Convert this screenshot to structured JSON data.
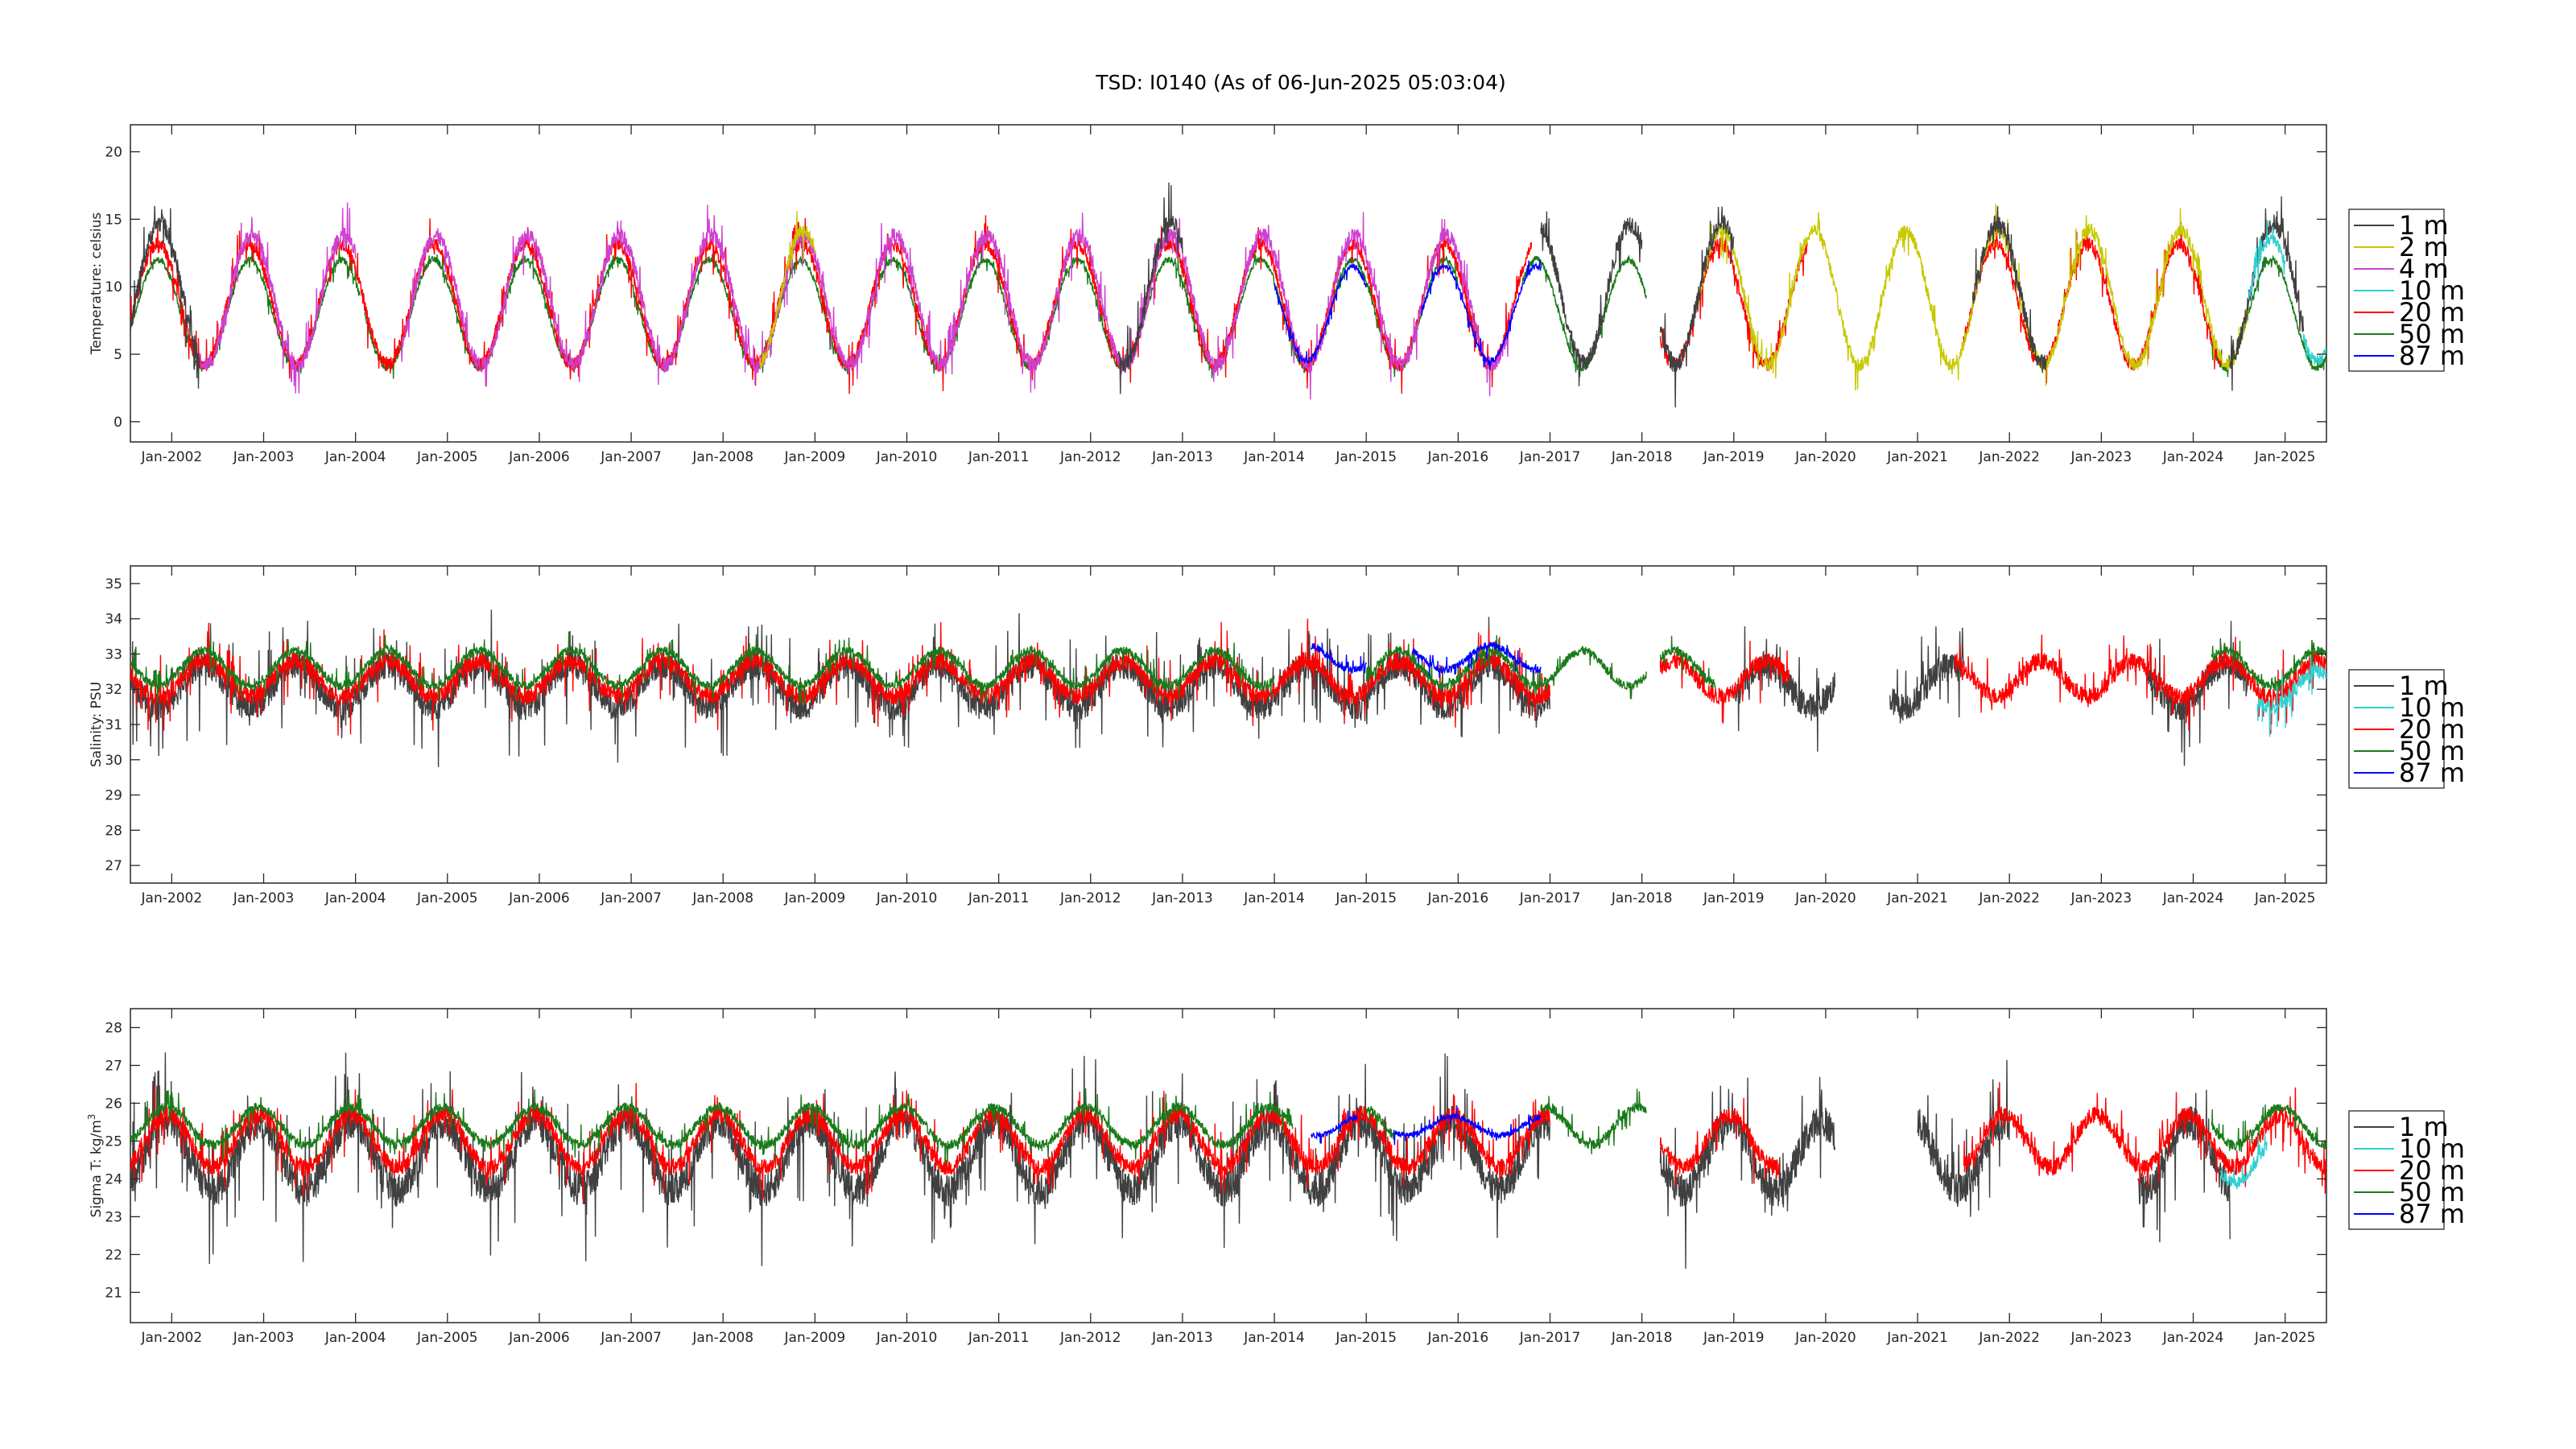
{
  "title": "TSD: I0140 (As of 06-Jun-2025 05:03:04)",
  "chart_data": [
    {
      "type": "line",
      "ylabel": "Temperature:  celsius",
      "xlim": [
        2001.55,
        2025.45
      ],
      "ylim": [
        -1.5,
        22
      ],
      "yticks": [
        0,
        5,
        10,
        15,
        20
      ],
      "xticks": [
        "Jan-2002",
        "Jan-2003",
        "Jan-2004",
        "Jan-2005",
        "Jan-2006",
        "Jan-2007",
        "Jan-2008",
        "Jan-2009",
        "Jan-2010",
        "Jan-2011",
        "Jan-2012",
        "Jan-2013",
        "Jan-2014",
        "Jan-2015",
        "Jan-2016",
        "Jan-2017",
        "Jan-2018",
        "Jan-2019",
        "Jan-2020",
        "Jan-2021",
        "Jan-2022",
        "Jan-2023",
        "Jan-2024",
        "Jan-2025"
      ],
      "grid": false,
      "legend_position": "right",
      "legend": [
        {
          "name": "1 m",
          "color": "#404040"
        },
        {
          "name": "2 m",
          "color": "#c8c800"
        },
        {
          "name": "4 m",
          "color": "#d040d0"
        },
        {
          "name": "10 m",
          "color": "#30d0d0"
        },
        {
          "name": "20 m",
          "color": "#ff0000"
        },
        {
          "name": "50 m",
          "color": "#1a7a1a"
        },
        {
          "name": "87 m",
          "color": "#0000ff"
        }
      ],
      "series": [
        {
          "name": "50 m",
          "color": "#1a7a1a",
          "mean": 8,
          "amp": 4,
          "phase": 0.6,
          "noise": 0.5,
          "segments": [
            [
              2001.55,
              2004.05
            ],
            [
              2004.1,
              2016.0
            ],
            [
              2016.7,
              2018.05
            ],
            [
              2024.2,
              2025.45
            ]
          ]
        },
        {
          "name": "20 m",
          "color": "#ff0000",
          "mean": 8.7,
          "amp": 4.5,
          "phase": 0.6,
          "noise": 1.0,
          "segments": [
            [
              2001.55,
              2016.8
            ],
            [
              2018.2,
              2019.8
            ],
            [
              2021.5,
              2024.3
            ]
          ]
        },
        {
          "name": "4 m",
          "color": "#d040d0",
          "mean": 9,
          "amp": 4.8,
          "phase": 0.62,
          "noise": 1.2,
          "segments": [
            [
              2002.3,
              2004.0
            ],
            [
              2004.5,
              2016.6
            ]
          ]
        },
        {
          "name": "2 m",
          "color": "#c8c800",
          "mean": 9.2,
          "amp": 5,
          "phase": 0.62,
          "noise": 1.0,
          "segments": [
            [
              2008.4,
              2009.0
            ],
            [
              2018.6,
              2024.6
            ]
          ]
        },
        {
          "name": "1 m",
          "color": "#404040",
          "mean": 9.5,
          "amp": 5.2,
          "phase": 0.62,
          "noise": 1.4,
          "segments": [
            [
              2001.55,
              2002.3
            ],
            [
              2012.3,
              2013.0
            ],
            [
              2016.9,
              2018.0
            ],
            [
              2018.2,
              2019.0
            ],
            [
              2021.6,
              2022.4
            ],
            [
              2024.4,
              2025.2
            ]
          ]
        },
        {
          "name": "87 m",
          "color": "#0000ff",
          "mean": 8,
          "amp": 3.5,
          "phase": 0.6,
          "noise": 0.4,
          "segments": [
            [
              2014.0,
              2015.0
            ],
            [
              2015.6,
              2016.9
            ]
          ]
        },
        {
          "name": "10 m",
          "color": "#30d0d0",
          "mean": 9,
          "amp": 4.5,
          "phase": 0.6,
          "noise": 0.8,
          "segments": [
            [
              2024.6,
              2025.0
            ],
            [
              2025.2,
              2025.45
            ]
          ]
        }
      ]
    },
    {
      "type": "line",
      "ylabel": "Salinity:  PSU",
      "xlim": [
        2001.55,
        2025.45
      ],
      "ylim": [
        26.5,
        35.5
      ],
      "yticks": [
        27,
        28,
        29,
        30,
        31,
        32,
        33,
        34,
        35
      ],
      "xticks": [
        "Jan-2002",
        "Jan-2003",
        "Jan-2004",
        "Jan-2005",
        "Jan-2006",
        "Jan-2007",
        "Jan-2008",
        "Jan-2009",
        "Jan-2010",
        "Jan-2011",
        "Jan-2012",
        "Jan-2013",
        "Jan-2014",
        "Jan-2015",
        "Jan-2016",
        "Jan-2017",
        "Jan-2018",
        "Jan-2019",
        "Jan-2020",
        "Jan-2021",
        "Jan-2022",
        "Jan-2023",
        "Jan-2024",
        "Jan-2025"
      ],
      "grid": false,
      "legend_position": "right",
      "legend": [
        {
          "name": "1 m",
          "color": "#404040"
        },
        {
          "name": "10 m",
          "color": "#30d0d0"
        },
        {
          "name": "20 m",
          "color": "#ff0000"
        },
        {
          "name": "50 m",
          "color": "#1a7a1a"
        },
        {
          "name": "87 m",
          "color": "#0000ff"
        }
      ],
      "series": [
        {
          "name": "1 m",
          "color": "#404040",
          "mean": 32.1,
          "amp": 0.6,
          "phase": 0.1,
          "noise": 0.8,
          "segments": [
            [
              2001.55,
              2017.0
            ],
            [
              2019.0,
              2020.1
            ],
            [
              2020.7,
              2021.5
            ],
            [
              2023.5,
              2024.6
            ]
          ]
        },
        {
          "name": "20 m",
          "color": "#ff0000",
          "mean": 32.3,
          "amp": 0.5,
          "phase": 0.1,
          "noise": 0.5,
          "segments": [
            [
              2001.55,
              2017.0
            ],
            [
              2018.2,
              2019.6
            ],
            [
              2021.4,
              2025.45
            ]
          ]
        },
        {
          "name": "50 m",
          "color": "#1a7a1a",
          "mean": 32.6,
          "amp": 0.5,
          "phase": 0.1,
          "noise": 0.25,
          "segments": [
            [
              2001.55,
              2014.0
            ],
            [
              2015.0,
              2018.05
            ],
            [
              2018.2,
              2018.8
            ],
            [
              2024.2,
              2025.45
            ]
          ]
        },
        {
          "name": "87 m",
          "color": "#0000ff",
          "mean": 32.9,
          "amp": 0.35,
          "phase": 0.1,
          "noise": 0.2,
          "segments": [
            [
              2014.4,
              2015.0
            ],
            [
              2015.5,
              2016.9
            ]
          ]
        },
        {
          "name": "10 m",
          "color": "#30d0d0",
          "mean": 32.0,
          "amp": 0.5,
          "phase": 0.1,
          "noise": 0.4,
          "segments": [
            [
              2024.7,
              2025.45
            ]
          ]
        }
      ]
    },
    {
      "type": "line",
      "ylabel": "Sigma T:  kg/m",
      "ylabel_sup": "3",
      "xlim": [
        2001.55,
        2025.45
      ],
      "ylim": [
        20.2,
        28.5
      ],
      "yticks": [
        21,
        22,
        23,
        24,
        25,
        26,
        27,
        28
      ],
      "xticks": [
        "Jan-2002",
        "Jan-2003",
        "Jan-2004",
        "Jan-2005",
        "Jan-2006",
        "Jan-2007",
        "Jan-2008",
        "Jan-2009",
        "Jan-2010",
        "Jan-2011",
        "Jan-2012",
        "Jan-2013",
        "Jan-2014",
        "Jan-2015",
        "Jan-2016",
        "Jan-2017",
        "Jan-2018",
        "Jan-2019",
        "Jan-2020",
        "Jan-2021",
        "Jan-2022",
        "Jan-2023",
        "Jan-2024",
        "Jan-2025"
      ],
      "grid": false,
      "legend_position": "right",
      "legend": [
        {
          "name": "1 m",
          "color": "#404040"
        },
        {
          "name": "10 m",
          "color": "#30d0d0"
        },
        {
          "name": "20 m",
          "color": "#ff0000"
        },
        {
          "name": "50 m",
          "color": "#1a7a1a"
        },
        {
          "name": "87 m",
          "color": "#0000ff"
        }
      ],
      "series": [
        {
          "name": "1 m",
          "color": "#404040",
          "mean": 24.6,
          "amp": 0.9,
          "phase": 0.7,
          "noise": 0.9,
          "segments": [
            [
              2001.55,
              2017.0
            ],
            [
              2018.2,
              2020.1
            ],
            [
              2021.0,
              2022.0
            ],
            [
              2023.4,
              2024.4
            ]
          ]
        },
        {
          "name": "20 m",
          "color": "#ff0000",
          "mean": 25.0,
          "amp": 0.7,
          "phase": 0.7,
          "noise": 0.45,
          "segments": [
            [
              2001.55,
              2017.0
            ],
            [
              2018.2,
              2019.5
            ],
            [
              2021.5,
              2025.45
            ]
          ]
        },
        {
          "name": "50 m",
          "color": "#1a7a1a",
          "mean": 25.4,
          "amp": 0.5,
          "phase": 0.7,
          "noise": 0.25,
          "segments": [
            [
              2001.55,
              2014.2
            ],
            [
              2015.0,
              2015.3
            ],
            [
              2016.9,
              2018.05
            ],
            [
              2024.2,
              2025.45
            ]
          ]
        },
        {
          "name": "87 m",
          "color": "#0000ff",
          "mean": 25.4,
          "amp": 0.25,
          "phase": 0.7,
          "noise": 0.15,
          "segments": [
            [
              2014.4,
              2014.9
            ],
            [
              2015.3,
              2016.9
            ]
          ]
        },
        {
          "name": "10 m",
          "color": "#30d0d0",
          "mean": 24.5,
          "amp": 0.6,
          "phase": 0.7,
          "noise": 0.3,
          "segments": [
            [
              2024.3,
              2024.8
            ]
          ]
        }
      ]
    }
  ]
}
